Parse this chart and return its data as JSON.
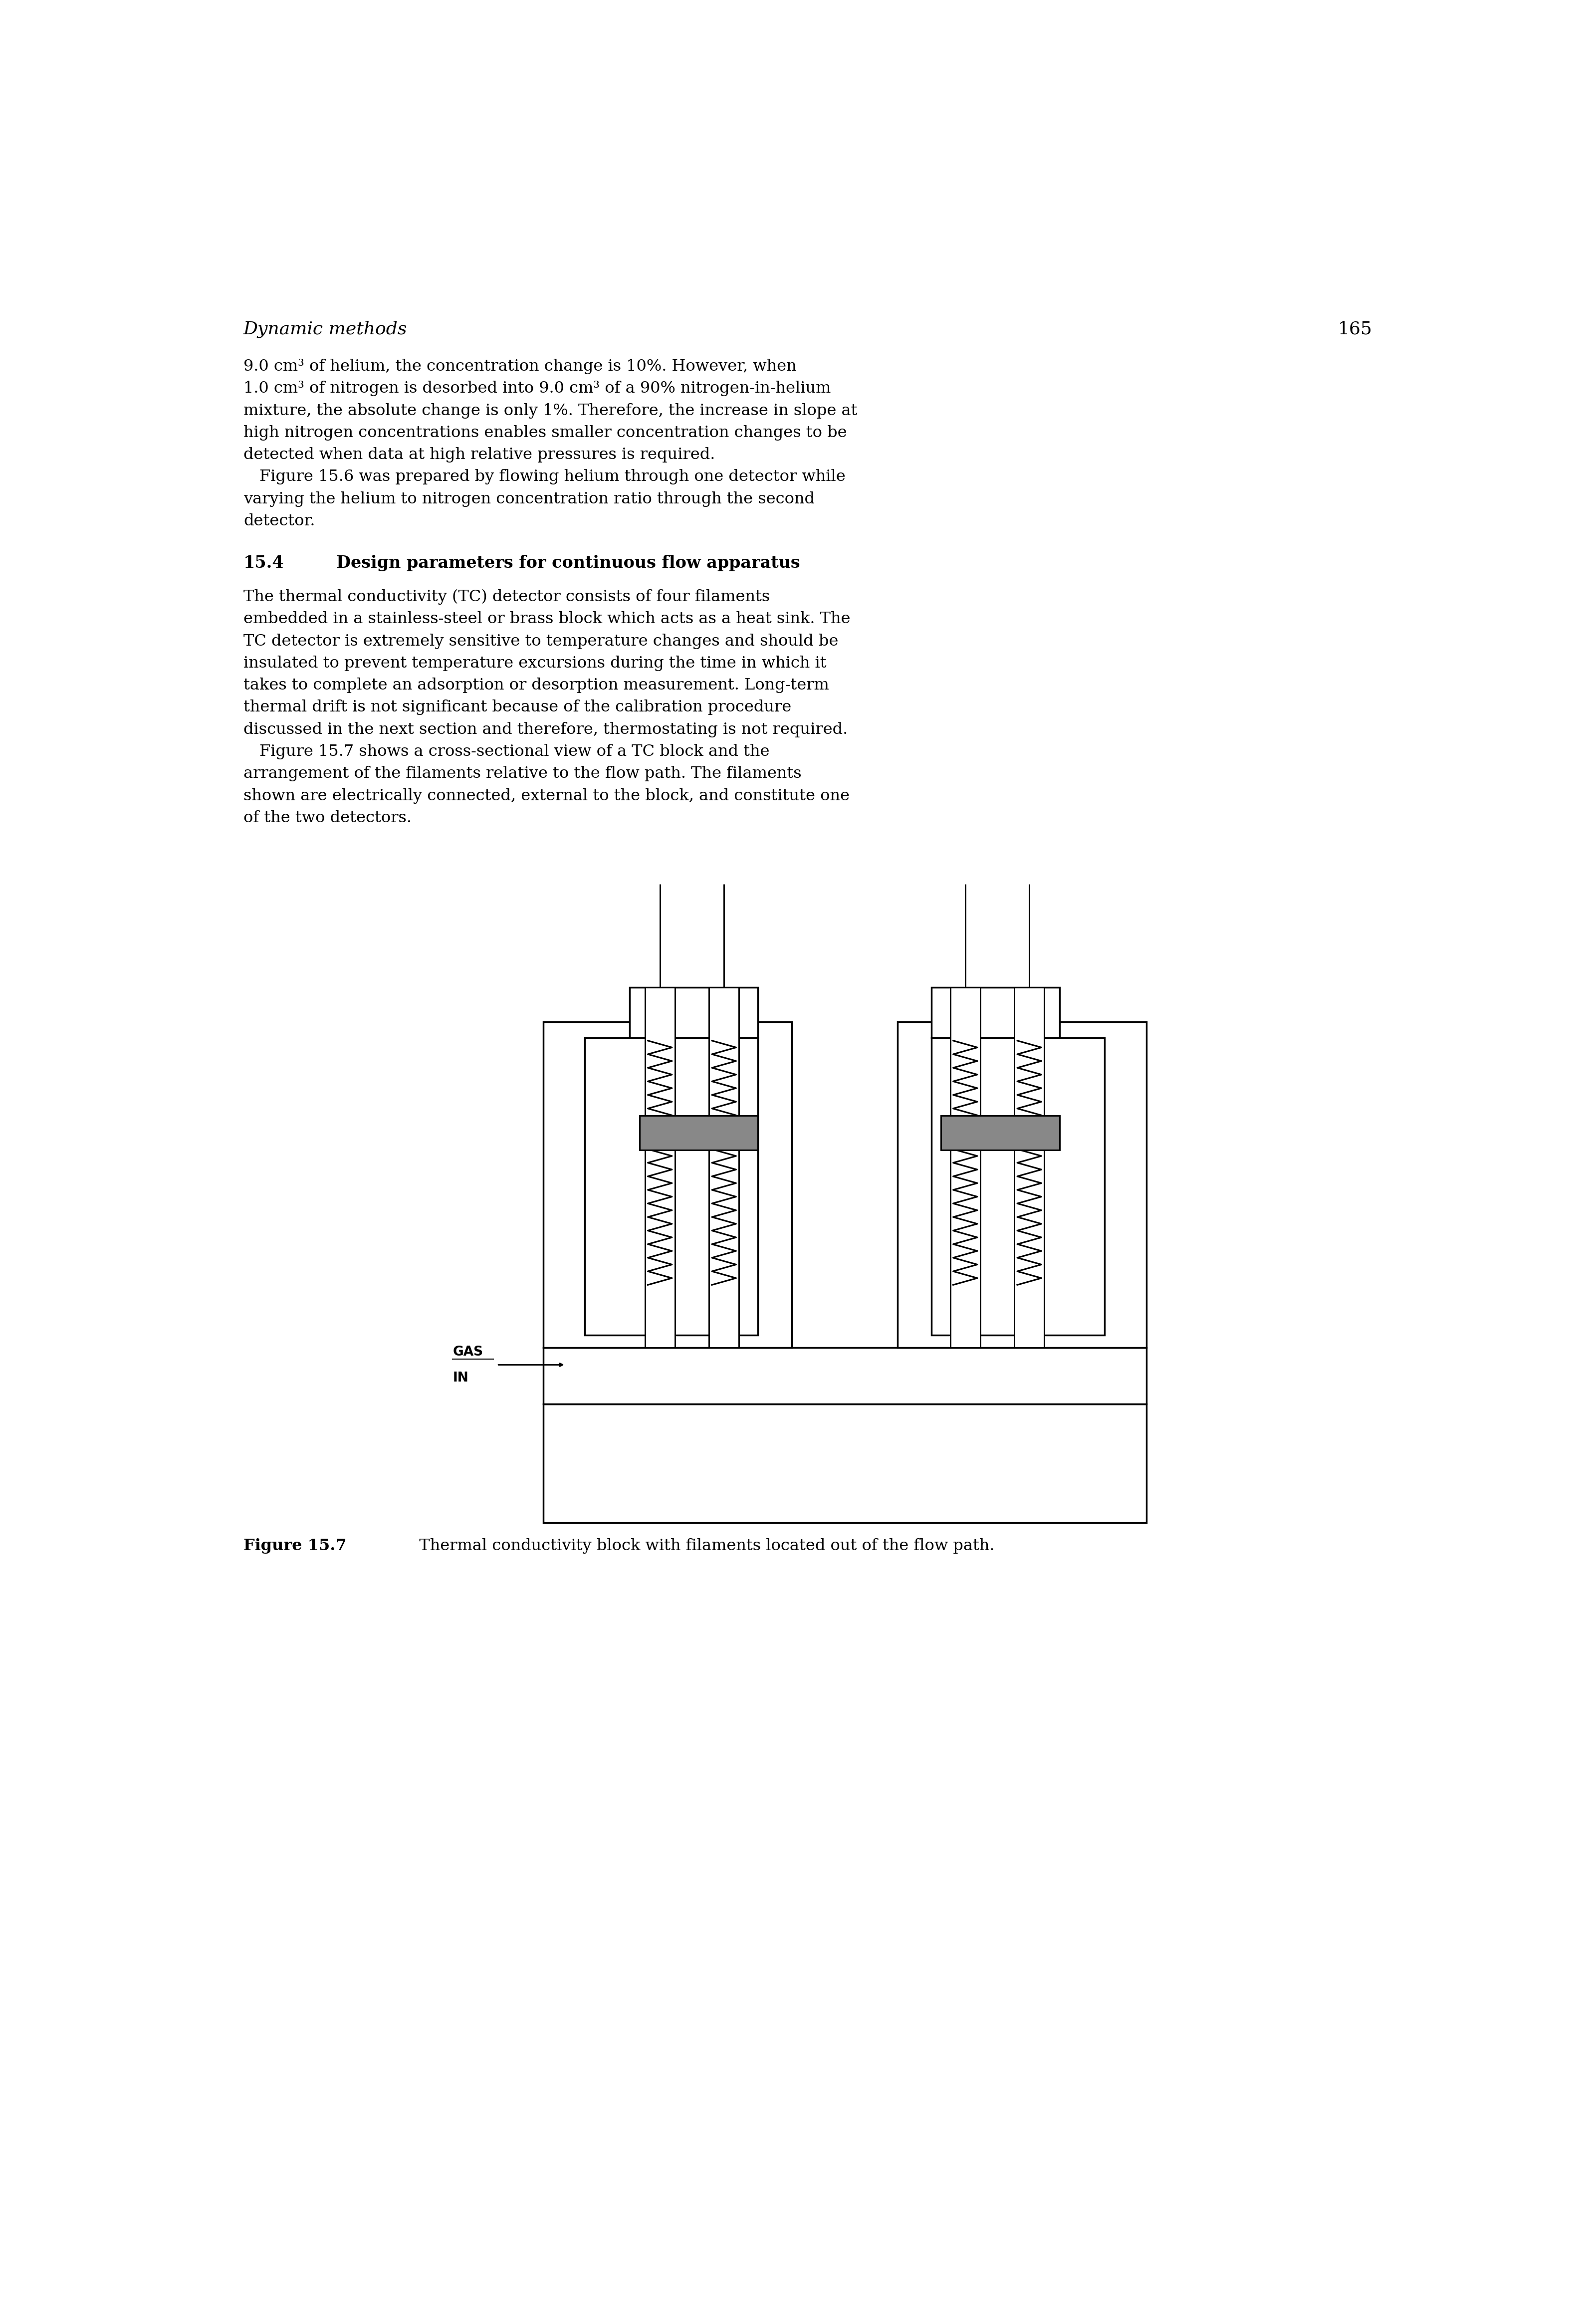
{
  "page_title_left": "Dynamic methods",
  "page_number": "165",
  "text_color": "#000000",
  "bg_color": "#ffffff",
  "figure_caption_bold": "Figure 15.7",
  "figure_caption_rest": "   Thermal conductivity block with filaments located out of the flow path."
}
